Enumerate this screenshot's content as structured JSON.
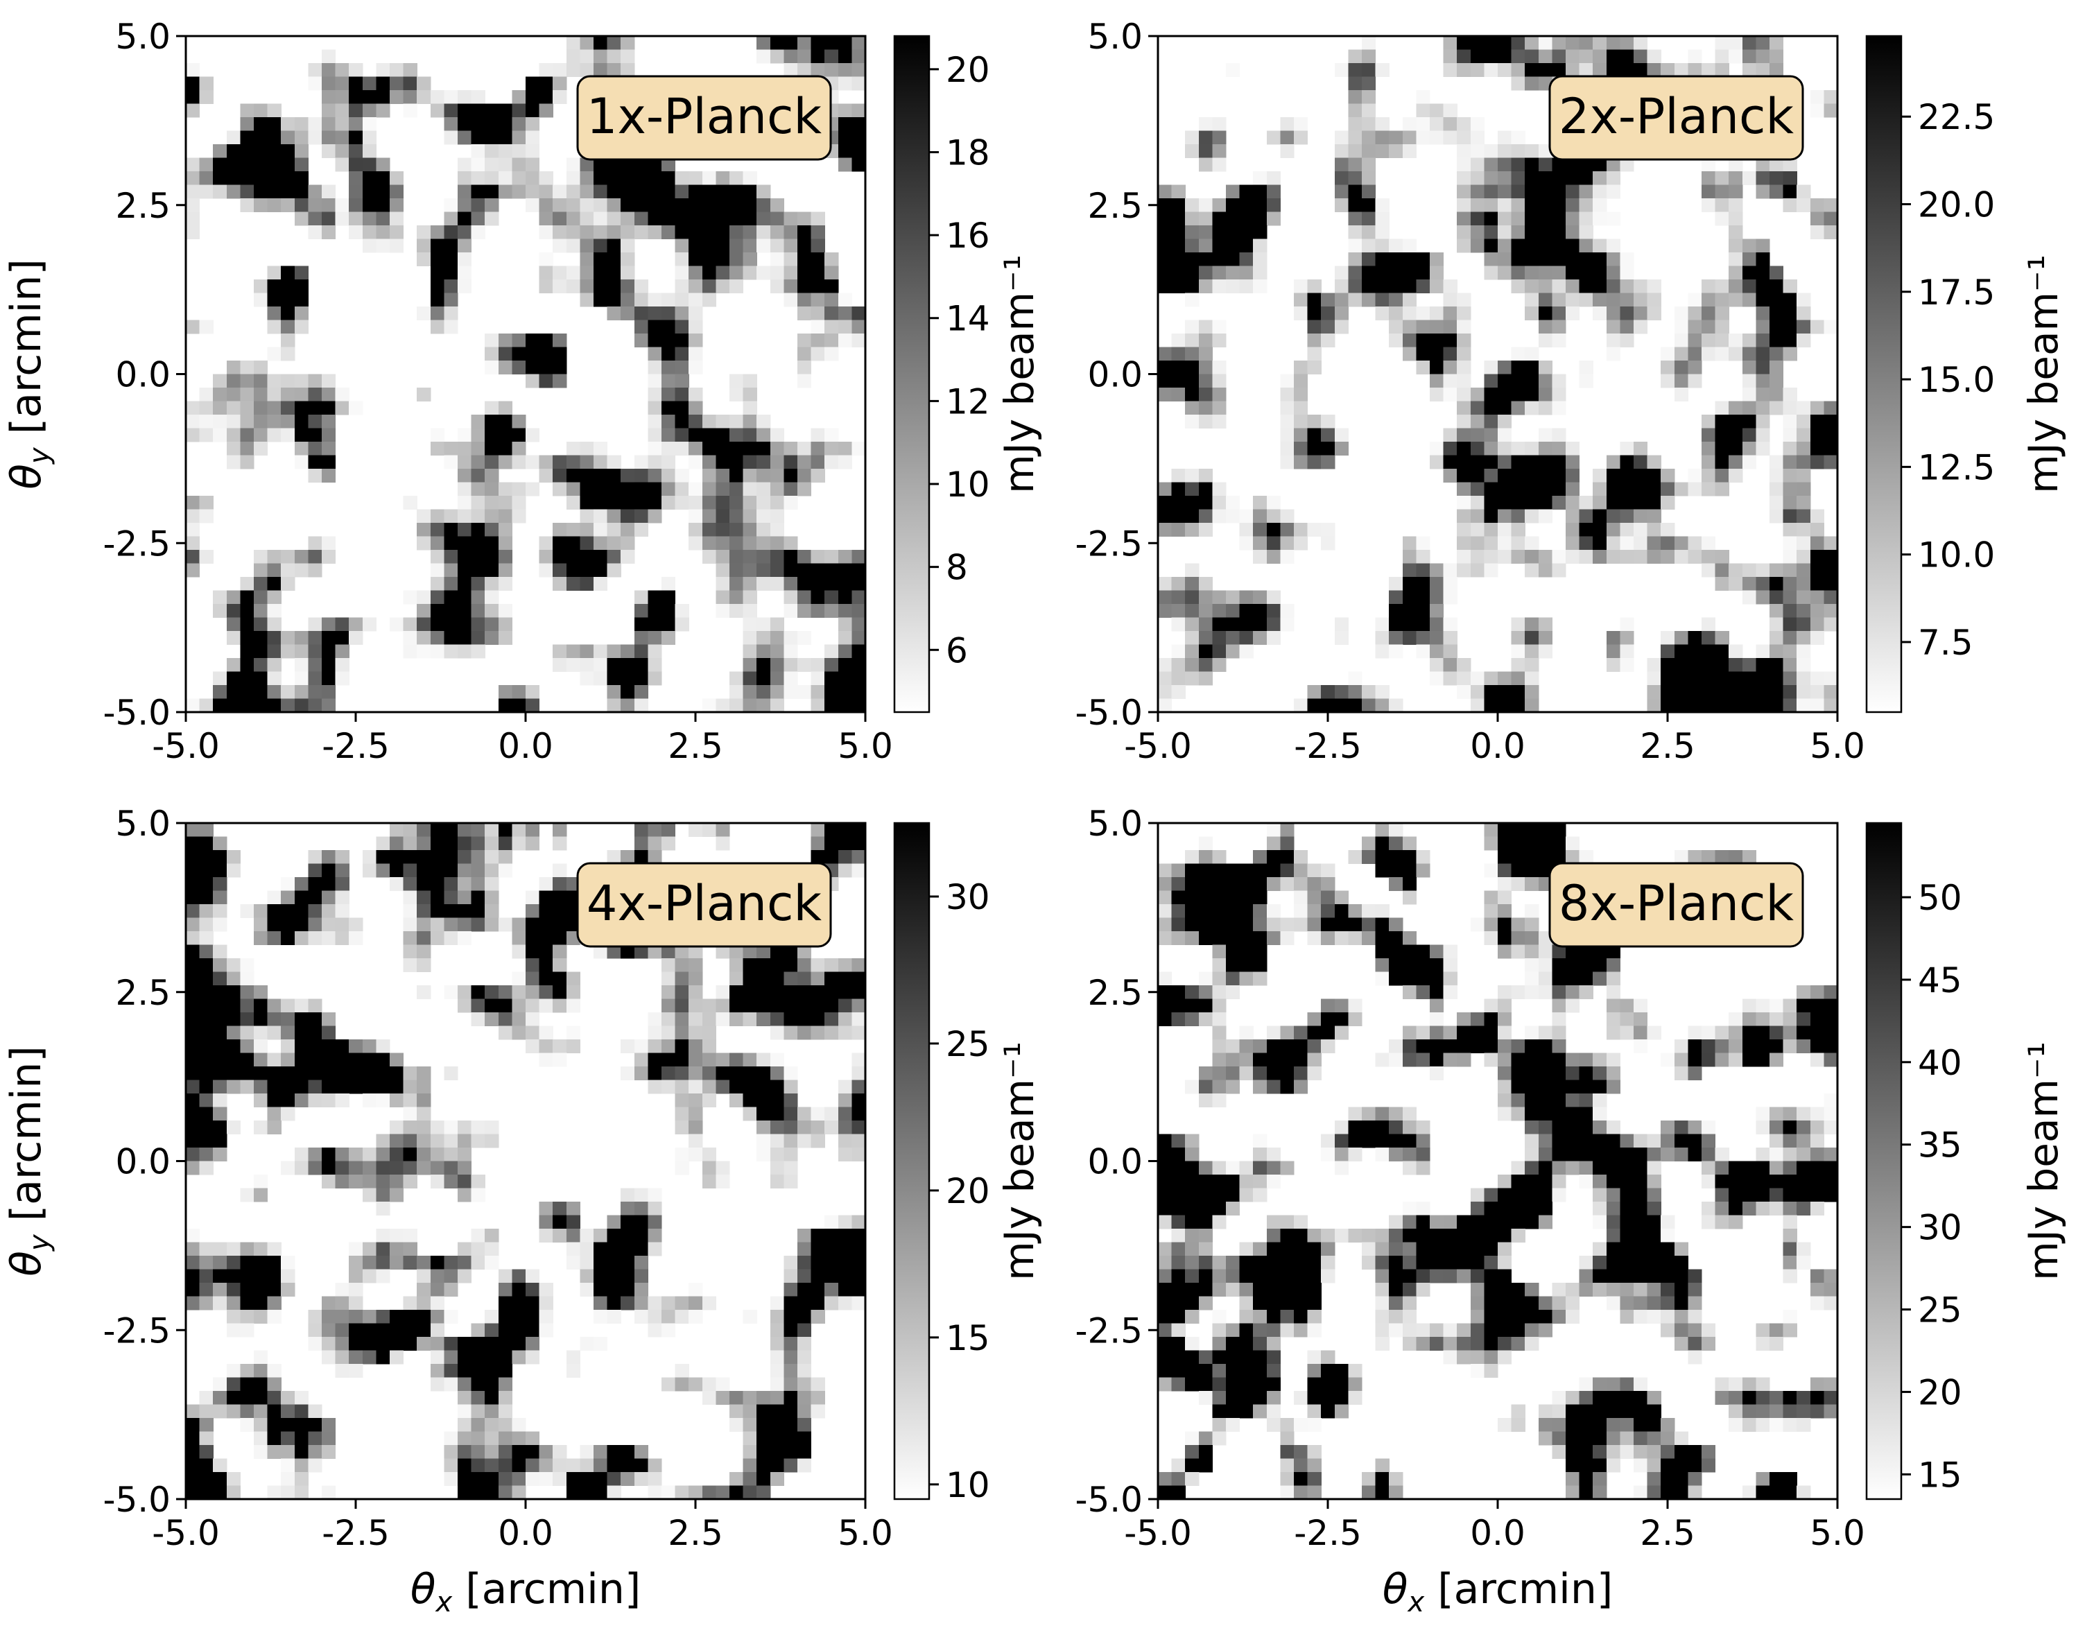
{
  "chart_data": [
    {
      "type": "heatmap",
      "panel_label": "1x-Planck",
      "xlabel": "",
      "ylabel": "θy [arcmin]",
      "xlim": [
        -5.0,
        5.0
      ],
      "ylim": [
        -5.0,
        5.0
      ],
      "xticks": [
        "-5.0",
        "-2.5",
        "0.0",
        "2.5",
        "5.0"
      ],
      "yticks": [
        "-5.0",
        "-2.5",
        "0.0",
        "2.5",
        "5.0"
      ],
      "colorbar": {
        "label": "mJy beam⁻¹",
        "range": [
          4.5,
          20.8
        ],
        "ticks": [
          "6",
          "8",
          "10",
          "12",
          "14",
          "16",
          "18",
          "20"
        ],
        "colormap": "gray_r"
      },
      "texture": {
        "seed": 11,
        "dark_frac": 0.13
      }
    },
    {
      "type": "heatmap",
      "panel_label": "2x-Planck",
      "xlabel": "",
      "ylabel": "",
      "xlim": [
        -5.0,
        5.0
      ],
      "ylim": [
        -5.0,
        5.0
      ],
      "xticks": [
        "-5.0",
        "-2.5",
        "0.0",
        "2.5",
        "5.0"
      ],
      "yticks": [
        "-5.0",
        "-2.5",
        "0.0",
        "2.5",
        "5.0"
      ],
      "colorbar": {
        "label": "mJy beam⁻¹",
        "range": [
          5.5,
          24.8
        ],
        "ticks": [
          "7.5",
          "10.0",
          "12.5",
          "15.0",
          "17.5",
          "20.0",
          "22.5"
        ],
        "colormap": "gray_r"
      },
      "texture": {
        "seed": 23,
        "dark_frac": 0.12
      }
    },
    {
      "type": "heatmap",
      "panel_label": "4x-Planck",
      "xlabel": "θx [arcmin]",
      "ylabel": "θy [arcmin]",
      "xlim": [
        -5.0,
        5.0
      ],
      "ylim": [
        -5.0,
        5.0
      ],
      "xticks": [
        "-5.0",
        "-2.5",
        "0.0",
        "2.5",
        "5.0"
      ],
      "yticks": [
        "-5.0",
        "-2.5",
        "0.0",
        "2.5",
        "5.0"
      ],
      "colorbar": {
        "label": "mJy beam⁻¹",
        "range": [
          9.5,
          32.5
        ],
        "ticks": [
          "10",
          "15",
          "20",
          "25",
          "30"
        ],
        "colormap": "gray_r"
      },
      "texture": {
        "seed": 37,
        "dark_frac": 0.16
      }
    },
    {
      "type": "heatmap",
      "panel_label": "8x-Planck",
      "xlabel": "θx [arcmin]",
      "ylabel": "",
      "xlim": [
        -5.0,
        5.0
      ],
      "ylim": [
        -5.0,
        5.0
      ],
      "xticks": [
        "-5.0",
        "-2.5",
        "0.0",
        "2.5",
        "5.0"
      ],
      "yticks": [
        "-5.0",
        "-2.5",
        "0.0",
        "2.5",
        "5.0"
      ],
      "colorbar": {
        "label": "mJy beam⁻¹",
        "range": [
          13.5,
          54.5
        ],
        "ticks": [
          "15",
          "20",
          "25",
          "30",
          "35",
          "40",
          "45",
          "50"
        ],
        "colormap": "gray_r"
      },
      "texture": {
        "seed": 53,
        "dark_frac": 0.2
      }
    }
  ],
  "colors": {
    "label_box_fill": "#f5deb3",
    "frame": "#000000",
    "background": "#ffffff"
  }
}
